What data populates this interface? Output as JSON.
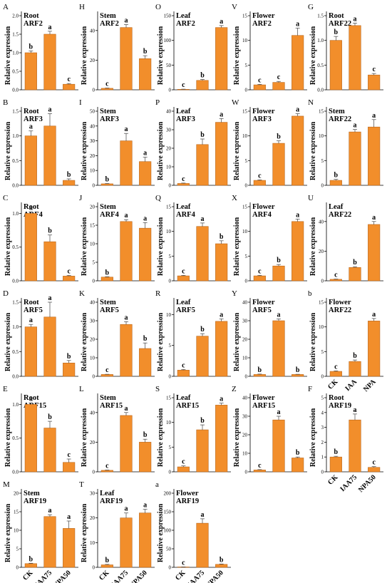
{
  "figure": {
    "y_axis_label": "Relative expression",
    "treatment_labels_wide": [
      "CK",
      "IAA75",
      "NPA50"
    ],
    "treatment_labels_short": [
      "CK",
      "IAA",
      "NPA"
    ],
    "bar_color": "#F28E2B",
    "bar_stroke": "#B8651A"
  },
  "chart_data": [
    {
      "type": "bar",
      "panel": "A",
      "tissue": "Root",
      "gene": "ARF2",
      "categories": [
        "CK",
        "IAA75",
        "NPA50"
      ],
      "values": [
        1.0,
        1.5,
        0.15
      ],
      "errors": [
        0.05,
        0.08,
        0.02
      ],
      "letters": [
        "b",
        "a",
        "c"
      ],
      "ylim": [
        0,
        2.0
      ],
      "yticks": [
        0.0,
        0.5,
        1.0,
        1.5,
        2.0
      ],
      "ylabel": "Relative expression"
    },
    {
      "type": "bar",
      "panel": "H",
      "tissue": "Stem",
      "gene": "ARF2",
      "categories": [
        "CK",
        "IAA75",
        "NPA50"
      ],
      "values": [
        1.0,
        42,
        21
      ],
      "errors": [
        0.2,
        2,
        2
      ],
      "letters": [
        "c",
        "a",
        "b"
      ],
      "ylim": [
        0,
        50
      ],
      "yticks": [
        0,
        20,
        40
      ],
      "ylabel": "Relative expression"
    },
    {
      "type": "bar",
      "panel": "O",
      "tissue": "Leaf",
      "gene": "ARF2",
      "categories": [
        "CK",
        "IAA75",
        "NPA50"
      ],
      "values": [
        1.0,
        19,
        126
      ],
      "errors": [
        0.3,
        2,
        4
      ],
      "letters": [
        "c",
        "b",
        "a"
      ],
      "ylim": [
        0,
        150
      ],
      "yticks": [
        0,
        50,
        100,
        150
      ],
      "ylabel": "Relative expression"
    },
    {
      "type": "bar",
      "panel": "V",
      "tissue": "Flower",
      "gene": "ARF2",
      "categories": [
        "CK",
        "IAA75",
        "NPA50"
      ],
      "values": [
        1.0,
        1.5,
        11
      ],
      "errors": [
        0.1,
        0.2,
        1.5
      ],
      "letters": [
        "c",
        "c",
        "a"
      ],
      "ylim": [
        0,
        15
      ],
      "yticks": [
        0,
        5,
        10,
        15
      ],
      "ylabel": "Relative expression"
    },
    {
      "type": "bar",
      "panel": "G",
      "tissue": "Root",
      "gene": "ARF22",
      "categories": [
        "CK",
        "IAA75",
        "NPA50"
      ],
      "values": [
        1.0,
        1.3,
        0.3
      ],
      "errors": [
        0.08,
        0.05,
        0.03
      ],
      "letters": [
        "b",
        "a",
        "c"
      ],
      "ylim": [
        0,
        1.5
      ],
      "yticks": [
        0.0,
        0.5,
        1.0,
        1.5
      ],
      "ylabel": "Relative expression"
    },
    {
      "type": "bar",
      "panel": "B",
      "tissue": "Root",
      "gene": "ARF3",
      "categories": [
        "CK",
        "IAA75",
        "NPA50"
      ],
      "values": [
        1.0,
        1.2,
        0.1
      ],
      "errors": [
        0.1,
        0.25,
        0.03
      ],
      "letters": [
        "a",
        "a",
        "b"
      ],
      "ylim": [
        0,
        1.5
      ],
      "yticks": [
        0.0,
        0.5,
        1.0,
        1.5
      ],
      "ylabel": "Relative expression"
    },
    {
      "type": "bar",
      "panel": "I",
      "tissue": "Stem",
      "gene": "ARF3",
      "categories": [
        "CK",
        "IAA75",
        "NPA50"
      ],
      "values": [
        1.0,
        30,
        16
      ],
      "errors": [
        0.2,
        5,
        3
      ],
      "letters": [
        "b",
        "a",
        "a"
      ],
      "ylim": [
        0,
        50
      ],
      "yticks": [
        0,
        10,
        20,
        30,
        40,
        50
      ],
      "ylabel": "Relative expression"
    },
    {
      "type": "bar",
      "panel": "P",
      "tissue": "Leaf",
      "gene": "ARF3",
      "categories": [
        "CK",
        "IAA75",
        "NPA50"
      ],
      "values": [
        1.0,
        22,
        34
      ],
      "errors": [
        0.2,
        3,
        2
      ],
      "letters": [
        "c",
        "b",
        "a"
      ],
      "ylim": [
        0,
        40
      ],
      "yticks": [
        0,
        10,
        20,
        30,
        40
      ],
      "ylabel": "Relative expression"
    },
    {
      "type": "bar",
      "panel": "W",
      "tissue": "Flower",
      "gene": "ARF3",
      "categories": [
        "CK",
        "IAA75",
        "NPA50"
      ],
      "values": [
        1.0,
        8.5,
        14
      ],
      "errors": [
        0.1,
        0.5,
        0.5
      ],
      "letters": [
        "c",
        "b",
        "a"
      ],
      "ylim": [
        0,
        15
      ],
      "yticks": [
        0,
        5,
        10,
        15
      ],
      "ylabel": "Relative expression"
    },
    {
      "type": "bar",
      "panel": "N",
      "tissue": "Stem",
      "gene": "ARF22",
      "categories": [
        "CK",
        "IAA75",
        "NPA50"
      ],
      "values": [
        1.0,
        10.8,
        11.8
      ],
      "errors": [
        0.2,
        0.5,
        1.5
      ],
      "letters": [
        "b",
        "a",
        "a"
      ],
      "ylim": [
        0,
        15
      ],
      "yticks": [
        0,
        5,
        10,
        15
      ],
      "ylabel": "Relative expression"
    },
    {
      "type": "bar",
      "panel": "C",
      "tissue": "Root",
      "gene": "ARF4",
      "categories": [
        "CK",
        "IAA75",
        "NPA50"
      ],
      "values": [
        1.0,
        0.58,
        0.07
      ],
      "errors": [
        0.02,
        0.1,
        0.01
      ],
      "letters": [
        "a",
        "b",
        "c"
      ],
      "ylim": [
        0,
        1.1
      ],
      "yticks": [
        0.0,
        0.5,
        1.0
      ],
      "ylabel": "Relative expression"
    },
    {
      "type": "bar",
      "panel": "J",
      "tissue": "Stem",
      "gene": "ARF4",
      "categories": [
        "CK",
        "IAA75",
        "NPA50"
      ],
      "values": [
        1.0,
        16,
        14.2
      ],
      "errors": [
        0.1,
        0.5,
        1.5
      ],
      "letters": [
        "b",
        "a",
        "a"
      ],
      "ylim": [
        0,
        20
      ],
      "yticks": [
        0,
        5,
        10,
        15,
        20
      ],
      "ylabel": "Relative expression"
    },
    {
      "type": "bar",
      "panel": "Q",
      "tissue": "Leaf",
      "gene": "ARF4",
      "categories": [
        "CK",
        "IAA75",
        "NPA50"
      ],
      "values": [
        1.0,
        11,
        7.5
      ],
      "errors": [
        0.1,
        0.7,
        0.6
      ],
      "letters": [
        "c",
        "a",
        "b"
      ],
      "ylim": [
        0,
        15
      ],
      "yticks": [
        0,
        5,
        10,
        15
      ],
      "ylabel": "Relative expression"
    },
    {
      "type": "bar",
      "panel": "X",
      "tissue": "Flower",
      "gene": "ARF4",
      "categories": [
        "CK",
        "IAA75",
        "NPA50"
      ],
      "values": [
        1.0,
        3.0,
        12
      ],
      "errors": [
        0.1,
        0.3,
        0.5
      ],
      "letters": [
        "c",
        "b",
        "a"
      ],
      "ylim": [
        0,
        15
      ],
      "yticks": [
        0,
        5,
        10,
        15
      ],
      "ylabel": "Relative expression"
    },
    {
      "type": "bar",
      "panel": "U",
      "tissue": "Leaf",
      "gene": "ARF22",
      "categories": [
        "CK",
        "IAA75",
        "NPA50"
      ],
      "values": [
        1.0,
        9,
        38
      ],
      "errors": [
        0.2,
        0.5,
        2
      ],
      "letters": [
        "c",
        "b",
        "a"
      ],
      "ylim": [
        0,
        50
      ],
      "yticks": [
        0,
        20,
        40
      ],
      "ylabel": "Relative expression"
    },
    {
      "type": "bar",
      "panel": "D",
      "tissue": "Root",
      "gene": "ARF5",
      "categories": [
        "CK",
        "IAA75",
        "NPA50"
      ],
      "values": [
        1.0,
        1.2,
        0.27
      ],
      "errors": [
        0.05,
        0.3,
        0.05
      ],
      "letters": [
        "a",
        "a",
        "b"
      ],
      "ylim": [
        0,
        1.5
      ],
      "yticks": [
        0.0,
        0.5,
        1.0,
        1.5
      ],
      "ylabel": "Relative expression"
    },
    {
      "type": "bar",
      "panel": "K",
      "tissue": "Stem",
      "gene": "ARF5",
      "categories": [
        "CK",
        "IAA75",
        "NPA50"
      ],
      "values": [
        1.0,
        28,
        15
      ],
      "errors": [
        0.1,
        1.5,
        3
      ],
      "letters": [
        "c",
        "a",
        "b"
      ],
      "ylim": [
        0,
        40
      ],
      "yticks": [
        0,
        10,
        20,
        30,
        40
      ],
      "ylabel": "Relative expression"
    },
    {
      "type": "bar",
      "panel": "R",
      "tissue": "Leaf",
      "gene": "ARF5",
      "categories": [
        "CK",
        "IAA75",
        "NPA50"
      ],
      "values": [
        1.0,
        6.5,
        8.9
      ],
      "errors": [
        0.1,
        0.4,
        0.4
      ],
      "letters": [
        "c",
        "b",
        "a"
      ],
      "ylim": [
        0,
        12
      ],
      "yticks": [
        0,
        5,
        10
      ],
      "ylabel": "Relative expression"
    },
    {
      "type": "bar",
      "panel": "Y",
      "tissue": "Flower",
      "gene": "ARF5",
      "categories": [
        "CK",
        "IAA75",
        "NPA50"
      ],
      "values": [
        1.0,
        30,
        1.0
      ],
      "errors": [
        0.2,
        1,
        0.1
      ],
      "letters": [
        "b",
        "a",
        "b"
      ],
      "ylim": [
        0,
        40
      ],
      "yticks": [
        0,
        10,
        20,
        30,
        40
      ],
      "ylabel": "Relative expression"
    },
    {
      "type": "bar",
      "panel": "b",
      "tissue": "Flower",
      "gene": "ARF22",
      "categories": [
        "CK",
        "IAA",
        "NPA"
      ],
      "values": [
        1.0,
        3.0,
        11.2
      ],
      "errors": [
        0.1,
        0.3,
        0.5
      ],
      "letters": [
        "c",
        "b",
        "a"
      ],
      "ylim": [
        0,
        15
      ],
      "yticks": [
        0,
        5,
        10,
        15
      ],
      "ylabel": "Relative expression"
    },
    {
      "type": "bar",
      "panel": "E",
      "tissue": "Root",
      "gene": "ARF15",
      "categories": [
        "CK",
        "IAA75",
        "NPA50"
      ],
      "values": [
        1.0,
        0.65,
        0.14
      ],
      "errors": [
        0.02,
        0.1,
        0.05
      ],
      "letters": [
        "a",
        "b",
        "c"
      ],
      "ylim": [
        0,
        1.1
      ],
      "yticks": [
        0.0,
        0.5,
        1.0
      ],
      "ylabel": "Relative expression"
    },
    {
      "type": "bar",
      "panel": "L",
      "tissue": "Stem",
      "gene": "ARF15",
      "categories": [
        "CK",
        "IAA75",
        "NPA50"
      ],
      "values": [
        1.0,
        38,
        20
      ],
      "errors": [
        0.2,
        2,
        2
      ],
      "letters": [
        "c",
        "a",
        "b"
      ],
      "ylim": [
        0,
        50
      ],
      "yticks": [
        0,
        20,
        40
      ],
      "ylabel": "Relative expression"
    },
    {
      "type": "bar",
      "panel": "S",
      "tissue": "Leaf",
      "gene": "ARF15",
      "categories": [
        "CK",
        "IAA75",
        "NPA50"
      ],
      "values": [
        1.0,
        8.5,
        13.5
      ],
      "errors": [
        0.2,
        1,
        0.4
      ],
      "letters": [
        "c",
        "b",
        "a"
      ],
      "ylim": [
        0,
        15
      ],
      "yticks": [
        0,
        5,
        10,
        15
      ],
      "ylabel": "Relative expression"
    },
    {
      "type": "bar",
      "panel": "Z",
      "tissue": "Flower",
      "gene": "ARF15",
      "categories": [
        "CK",
        "IAA75",
        "NPA50"
      ],
      "values": [
        1.0,
        28,
        7.5
      ],
      "errors": [
        0.2,
        2,
        0.5
      ],
      "letters": [
        "c",
        "a",
        "b"
      ],
      "ylim": [
        0,
        40
      ],
      "yticks": [
        0,
        10,
        20,
        30,
        40
      ],
      "ylabel": "Relative expression"
    },
    {
      "type": "bar",
      "panel": "F",
      "tissue": "Root",
      "gene": "ARF19",
      "categories": [
        "CK",
        "IAA75",
        "NPA50"
      ],
      "values": [
        1.0,
        3.5,
        0.3
      ],
      "errors": [
        0.05,
        0.4,
        0.05
      ],
      "letters": [
        "b",
        "a",
        "c"
      ],
      "ylim": [
        0,
        5
      ],
      "yticks": [
        0,
        1,
        2,
        3,
        4,
        5
      ],
      "ylabel": "Relative expression"
    },
    {
      "type": "bar",
      "panel": "M",
      "tissue": "Stem",
      "gene": "ARF19",
      "categories": [
        "CK",
        "IAA75",
        "NPA50"
      ],
      "values": [
        1.0,
        13.7,
        10.5
      ],
      "errors": [
        0.1,
        0.5,
        2
      ],
      "letters": [
        "b",
        "a",
        "a"
      ],
      "ylim": [
        0,
        20
      ],
      "yticks": [
        0,
        5,
        10,
        15,
        20
      ],
      "ylabel": "Relative expression"
    },
    {
      "type": "bar",
      "panel": "T",
      "tissue": "Leaf",
      "gene": "ARF19",
      "categories": [
        "CK",
        "IAA75",
        "NPA50"
      ],
      "values": [
        1.0,
        20,
        22
      ],
      "errors": [
        0.2,
        2,
        1.5
      ],
      "letters": [
        "b",
        "a",
        "a"
      ],
      "ylim": [
        0,
        30
      ],
      "yticks": [
        0,
        10,
        20,
        30
      ],
      "ylabel": "Relative expression"
    },
    {
      "type": "bar",
      "panel": "a",
      "tissue": "Flower",
      "gene": "ARF19",
      "categories": [
        "CK",
        "IAA75",
        "NPA50"
      ],
      "values": [
        1.0,
        119,
        8
      ],
      "errors": [
        0.2,
        12,
        1
      ],
      "letters": [
        "c",
        "a",
        "b"
      ],
      "ylim": [
        0,
        200
      ],
      "yticks": [
        0,
        50,
        100,
        150,
        200
      ],
      "ylabel": "Relative expression"
    }
  ]
}
